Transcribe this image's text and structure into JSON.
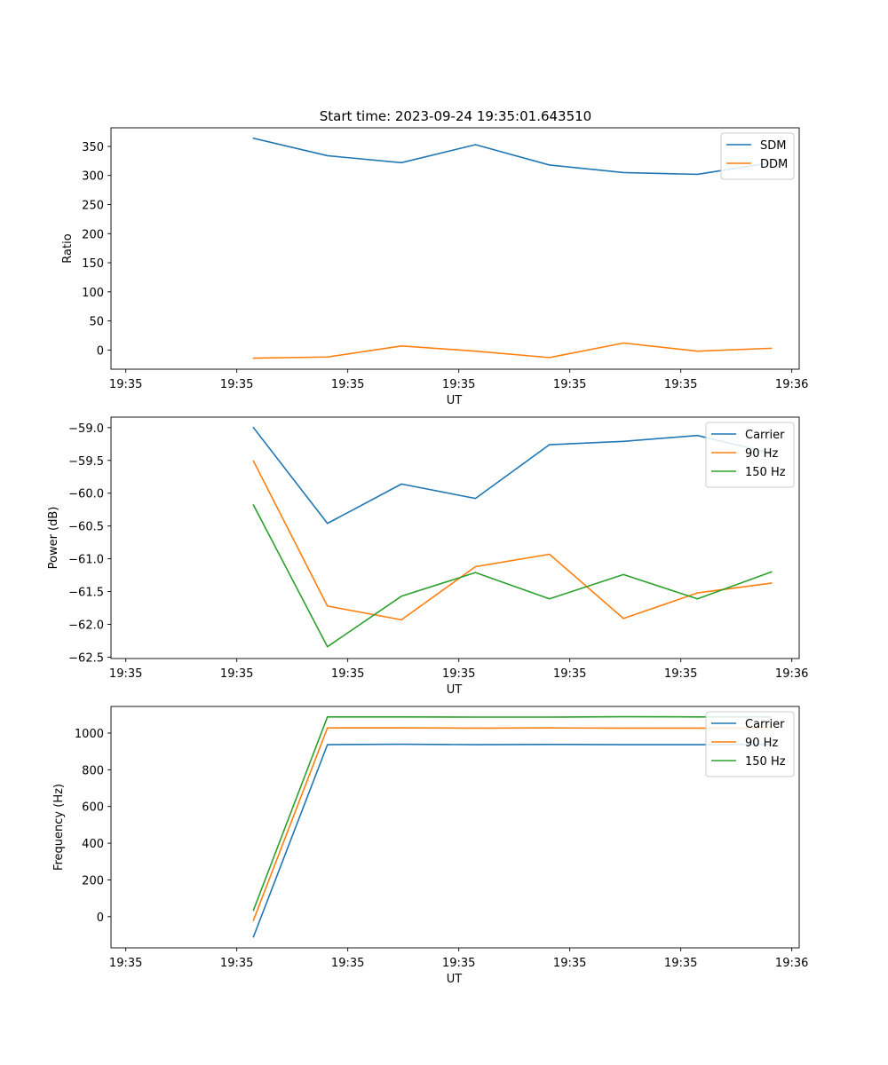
{
  "figure_title": "Start time: 2023-09-24 19:35:01.643510",
  "chart_data": [
    {
      "type": "line",
      "title": "Start time: 2023-09-24 19:35:01.643510",
      "xlabel": "UT",
      "ylabel": "Ratio",
      "x_tick_labels": [
        "19:35",
        "19:35",
        "19:35",
        "19:35",
        "19:35",
        "19:35",
        "19:36"
      ],
      "y_ticks": [
        0,
        50,
        100,
        150,
        200,
        250,
        300,
        350
      ],
      "y_tick_labels": [
        "0",
        "50",
        "100",
        "150",
        "200",
        "250",
        "300",
        "350"
      ],
      "xlim": [
        -0.12,
        0.81
      ],
      "ylim": [
        -33,
        382
      ],
      "x": [
        0.0725,
        0.1725,
        0.2725,
        0.3725,
        0.4725,
        0.5725,
        0.6725,
        0.7725
      ],
      "legend_position": "top-right",
      "series": [
        {
          "name": "SDM",
          "color": "#1f77b4",
          "values": [
            364,
            334,
            322,
            353,
            318,
            305,
            302,
            322
          ]
        },
        {
          "name": "DDM",
          "color": "#ff7f0e",
          "values": [
            -14,
            -12,
            7,
            -2,
            -13,
            12,
            -2,
            3
          ]
        }
      ]
    },
    {
      "type": "line",
      "title": "",
      "xlabel": "UT",
      "ylabel": "Power (dB)",
      "x_tick_labels": [
        "19:35",
        "19:35",
        "19:35",
        "19:35",
        "19:35",
        "19:35",
        "19:36"
      ],
      "y_ticks": [
        -62.5,
        -62.0,
        -61.5,
        -61.0,
        -60.5,
        -60.0,
        -59.5,
        -59.0
      ],
      "y_tick_labels": [
        "−62.5",
        "−62.0",
        "−61.5",
        "−61.0",
        "−60.5",
        "−60.0",
        "−59.5",
        "−59.0"
      ],
      "xlim": [
        -0.12,
        0.81
      ],
      "ylim": [
        -62.52,
        -58.84
      ],
      "x": [
        0.0725,
        0.1725,
        0.2725,
        0.3725,
        0.4725,
        0.5725,
        0.6725,
        0.7725
      ],
      "legend_position": "top-right",
      "series": [
        {
          "name": "Carrier",
          "color": "#1f77b4",
          "values": [
            -59.0,
            -60.46,
            -59.86,
            -60.08,
            -59.26,
            -59.21,
            -59.12,
            -59.39
          ]
        },
        {
          "name": "90 Hz",
          "color": "#ff7f0e",
          "values": [
            -59.51,
            -61.72,
            -61.93,
            -61.12,
            -60.93,
            -61.91,
            -61.52,
            -61.37
          ]
        },
        {
          "name": "150 Hz",
          "color": "#2ca02c",
          "values": [
            -60.18,
            -62.34,
            -61.57,
            -61.21,
            -61.61,
            -61.24,
            -61.61,
            -61.2
          ]
        }
      ]
    },
    {
      "type": "line",
      "title": "",
      "xlabel": "UT",
      "ylabel": "Frequency (Hz)",
      "x_tick_labels": [
        "19:35",
        "19:35",
        "19:35",
        "19:35",
        "19:35",
        "19:35",
        "19:36"
      ],
      "y_ticks": [
        0,
        200,
        400,
        600,
        800,
        1000
      ],
      "y_tick_labels": [
        "0",
        "200",
        "400",
        "600",
        "800",
        "1000"
      ],
      "xlim": [
        -0.12,
        0.81
      ],
      "ylim": [
        -170,
        1145
      ],
      "x": [
        0.0725,
        0.1725,
        0.2725,
        0.3725,
        0.4725,
        0.5725,
        0.6725,
        0.7725
      ],
      "legend_position": "top-right",
      "series": [
        {
          "name": "Carrier",
          "color": "#1f77b4",
          "values": [
            -110,
            937,
            939,
            937,
            938,
            937,
            937,
            938
          ]
        },
        {
          "name": "90 Hz",
          "color": "#ff7f0e",
          "values": [
            -20,
            1028,
            1028,
            1027,
            1028,
            1027,
            1027,
            1027
          ]
        },
        {
          "name": "150 Hz",
          "color": "#2ca02c",
          "values": [
            35,
            1088,
            1088,
            1087,
            1087,
            1089,
            1088,
            1088
          ]
        }
      ]
    }
  ]
}
